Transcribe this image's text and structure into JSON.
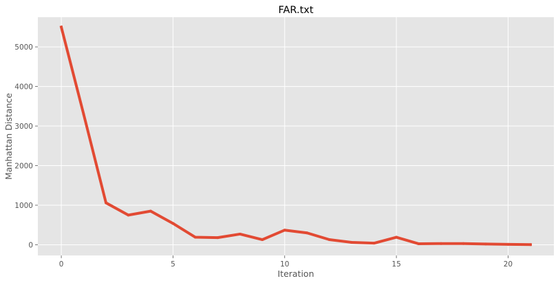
{
  "chart_data": {
    "type": "line",
    "title": "FAR.txt",
    "xlabel": "Iteration",
    "ylabel": "Manhattan Distance",
    "xlim": [
      -1.05,
      22.05
    ],
    "ylim": [
      -270,
      5750
    ],
    "xticks": [
      0,
      5,
      10,
      15,
      20
    ],
    "yticks": [
      0,
      1000,
      2000,
      3000,
      4000,
      5000
    ],
    "xtick_labels": [
      "0",
      "5",
      "10",
      "15",
      "20"
    ],
    "ytick_labels": [
      "0",
      "1000",
      "2000",
      "3000",
      "4000",
      "5000"
    ],
    "grid": true,
    "style": "ggplot",
    "background_color": "#E5E5E5",
    "grid_color": "#FFFFFF",
    "series": [
      {
        "color": "#E24A33",
        "x": [
          0,
          1,
          2,
          3,
          4,
          5,
          6,
          7,
          8,
          9,
          10,
          11,
          12,
          13,
          14,
          15,
          16,
          17,
          18,
          19,
          20,
          21
        ],
        "y": [
          5500,
          3300,
          1060,
          750,
          850,
          540,
          190,
          180,
          270,
          130,
          370,
          300,
          130,
          60,
          40,
          190,
          25,
          30,
          30,
          20,
          10,
          5
        ]
      }
    ]
  }
}
